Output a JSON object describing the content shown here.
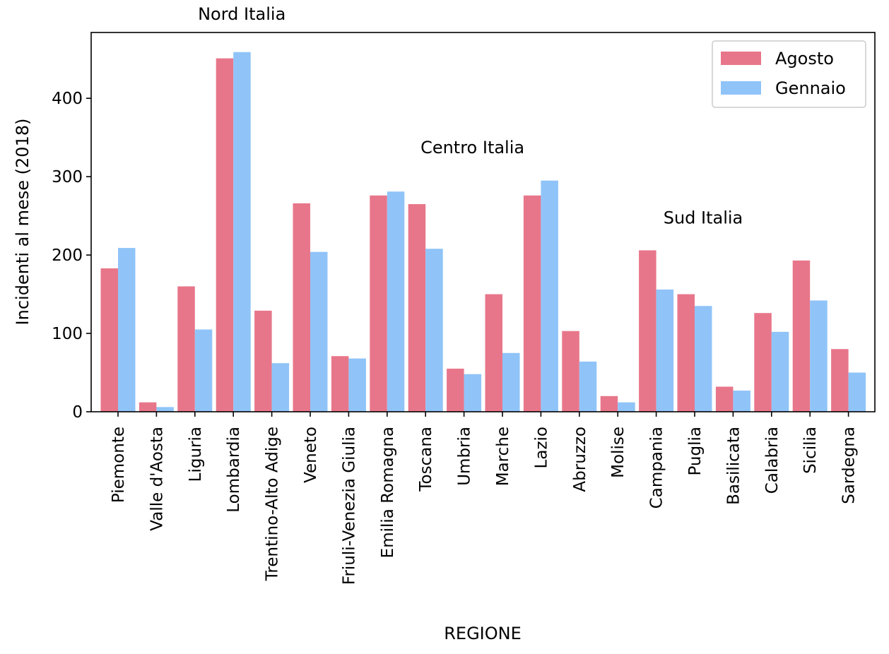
{
  "chart_data": {
    "type": "bar",
    "xlabel": "REGIONE",
    "ylabel": "Incidenti al mese (2018)",
    "ylim": [
      0,
      484
    ],
    "yticks": [
      0,
      100,
      200,
      300,
      400
    ],
    "grid": false,
    "legend_position": "top-right",
    "categories": [
      "Piemonte",
      "Valle d'Aosta",
      "Liguria",
      "Lombardia",
      "Trentino-Alto Adige",
      "Veneto",
      "Friuli-Venezia Giulia",
      "Emilia Romagna",
      "Toscana",
      "Umbria",
      "Marche",
      "Lazio",
      "Abruzzo",
      "Molise",
      "Campania",
      "Puglia",
      "Basilicata",
      "Calabria",
      "Sicilia",
      "Sardegna"
    ],
    "series": [
      {
        "name": "Agosto",
        "color": "#e8768a",
        "values": [
          183,
          12,
          160,
          451,
          129,
          266,
          71,
          276,
          265,
          55,
          150,
          276,
          103,
          20,
          206,
          150,
          32,
          126,
          193,
          80
        ]
      },
      {
        "name": "Gennaio",
        "color": "#90c4f8",
        "values": [
          209,
          6,
          105,
          459,
          62,
          204,
          68,
          281,
          208,
          48,
          75,
          295,
          64,
          12,
          156,
          135,
          27,
          102,
          142,
          50
        ]
      }
    ],
    "annotations": [
      {
        "text": "Nord Italia",
        "x": "Lombardia",
        "y": 500
      },
      {
        "text": "Centro Italia",
        "x": "Umbria",
        "y": 330
      },
      {
        "text": "Sud Italia",
        "x": "Puglia",
        "y": 240
      }
    ]
  }
}
